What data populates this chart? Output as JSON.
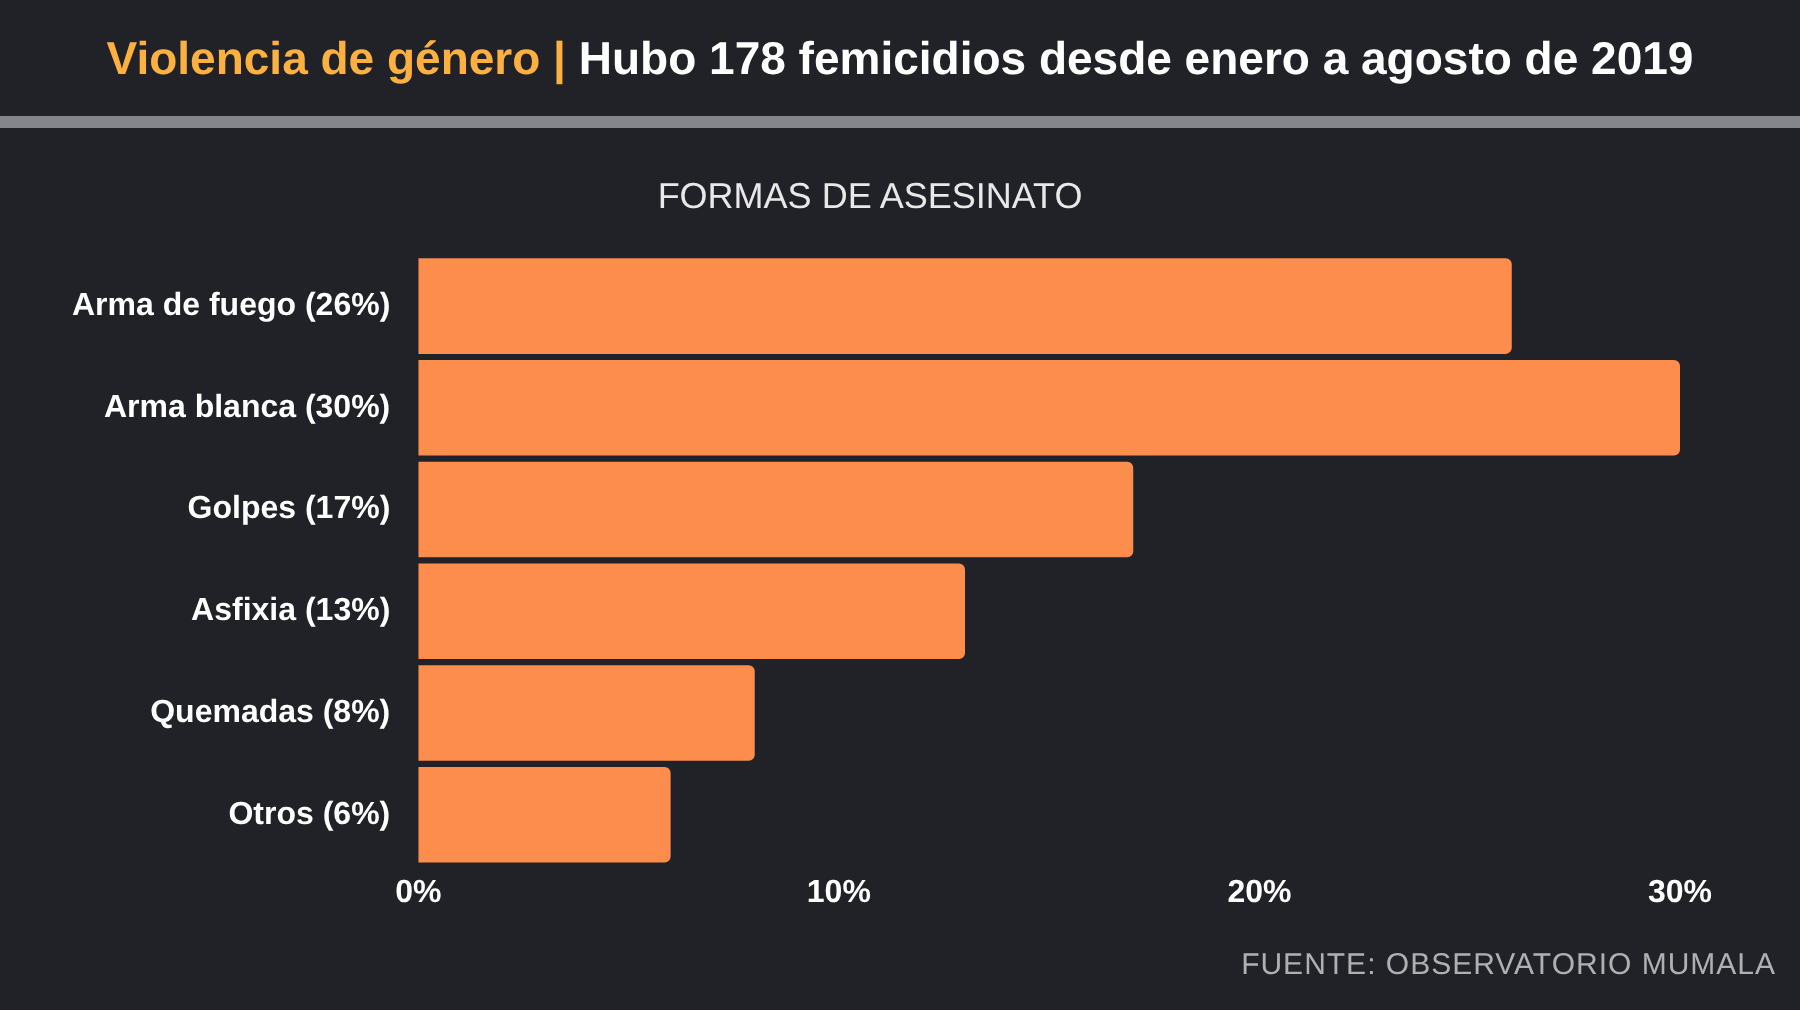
{
  "chart_data": {
    "type": "bar",
    "orientation": "horizontal",
    "title": "Violencia de género | Hubo 178 femicidios desde enero a agosto de 2019",
    "subtitle": "FORMAS DE ASESINATO",
    "categories": [
      "Arma de fuego (26%)",
      "Arma blanca (30%)",
      "Golpes (17%)",
      "Asfixia (13%)",
      "Quemadas (8%)",
      "Otros (6%)"
    ],
    "values": [
      26,
      30,
      17,
      13,
      8,
      6
    ],
    "color": "#fd8d4c",
    "xlim": [
      0,
      30
    ],
    "xticks": [
      {
        "value": 0,
        "label": "0%"
      },
      {
        "value": 10,
        "label": "10%"
      },
      {
        "value": 20,
        "label": "20%"
      },
      {
        "value": 30,
        "label": "30%"
      }
    ],
    "annotations": [
      "FUENTE: OBSERVATORIO MUMALA"
    ]
  }
}
